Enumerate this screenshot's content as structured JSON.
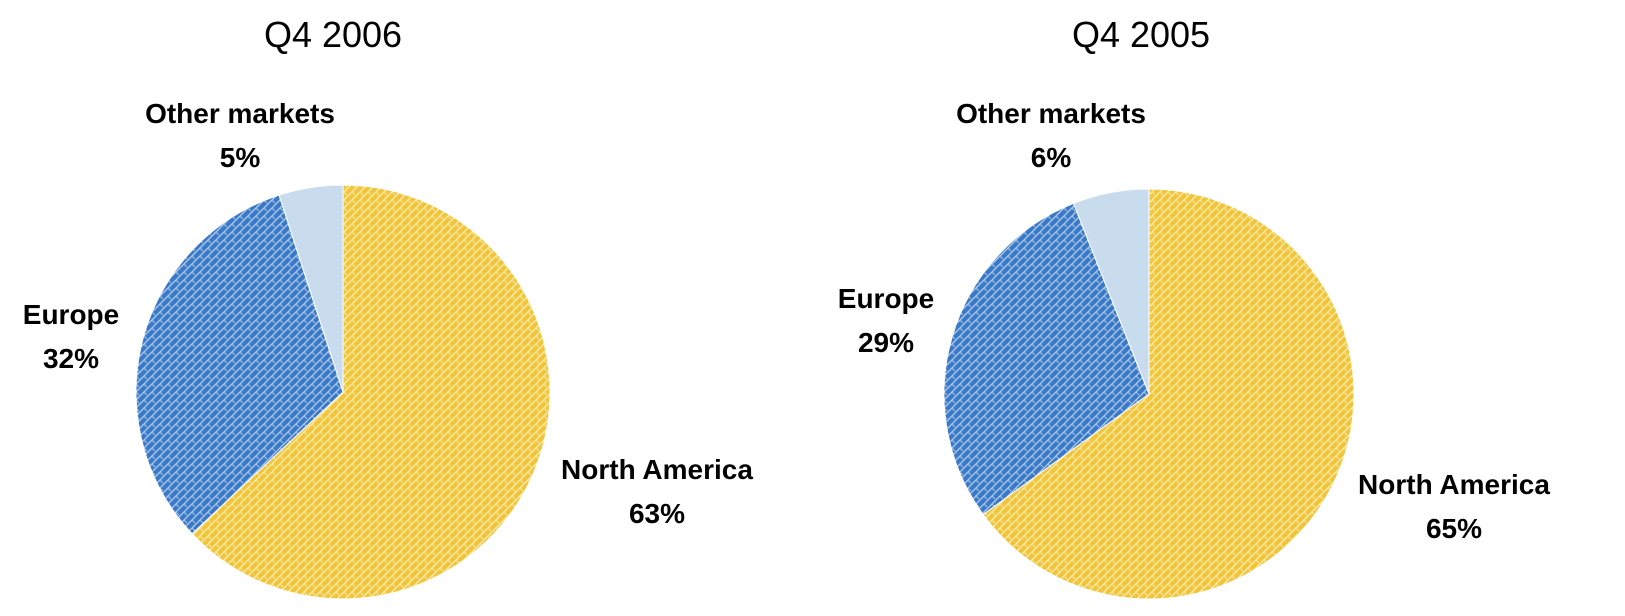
{
  "chart_data": [
    {
      "type": "pie",
      "title": "Q4 2006",
      "slices": [
        {
          "label": "North America",
          "value": 63,
          "display": "63%",
          "color": "#f0c53c",
          "pattern": "yellow"
        },
        {
          "label": "Europe",
          "value": 32,
          "display": "32%",
          "color": "#3a78c8",
          "pattern": "blue"
        },
        {
          "label": "Other markets",
          "value": 5,
          "display": "5%",
          "color": "#c8dcee",
          "pattern": "none"
        }
      ]
    },
    {
      "type": "pie",
      "title": "Q4 2005",
      "slices": [
        {
          "label": "North America",
          "value": 65,
          "display": "65%",
          "color": "#f0c53c",
          "pattern": "yellow"
        },
        {
          "label": "Europe",
          "value": 29,
          "display": "29%",
          "color": "#3a78c8",
          "pattern": "blue"
        },
        {
          "label": "Other markets",
          "value": 6,
          "display": "6%",
          "color": "#c8dcee",
          "pattern": "none"
        }
      ]
    }
  ]
}
